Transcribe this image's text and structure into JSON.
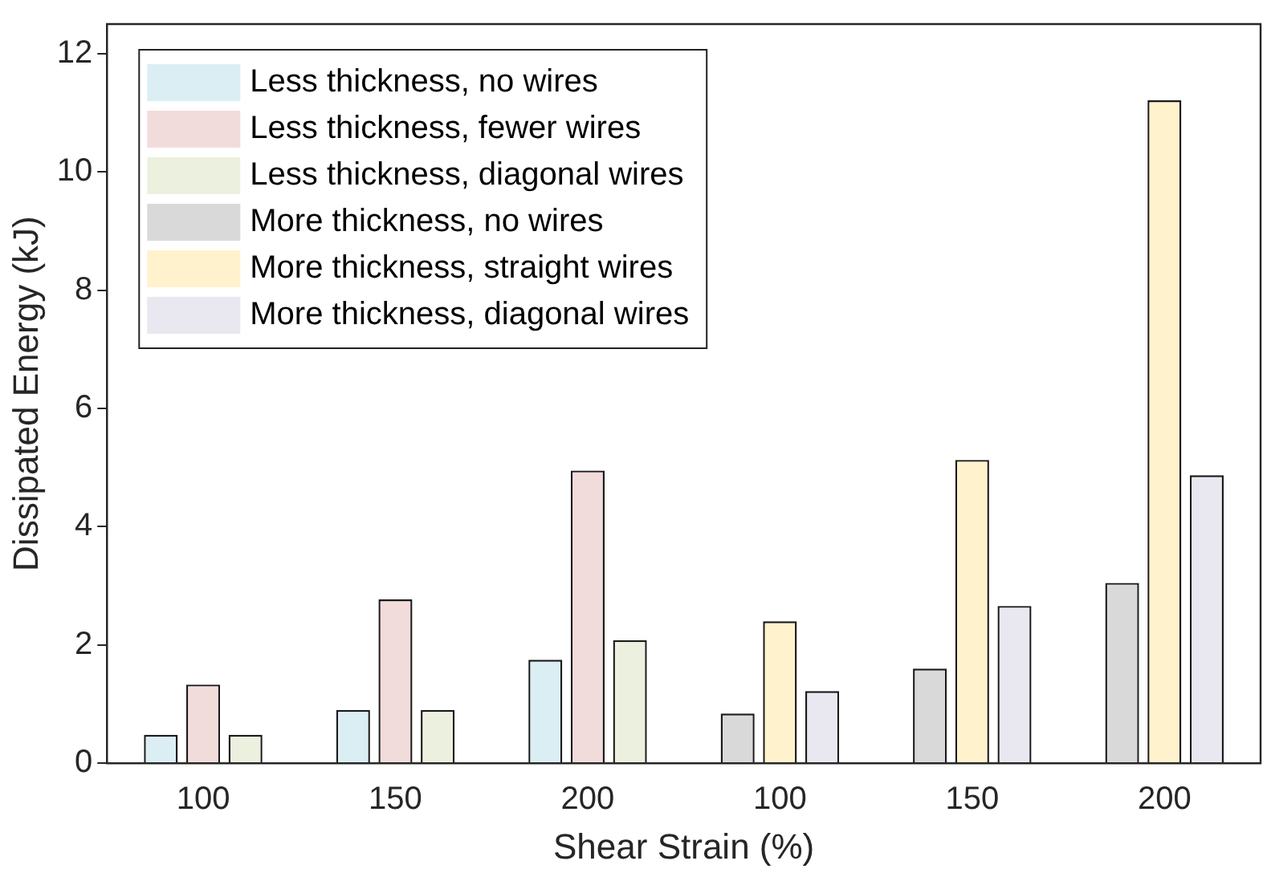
{
  "chart_data": {
    "type": "bar",
    "xlabel": "Shear Strain (%)",
    "ylabel": "Dissipated Energy (kJ)",
    "categories": [
      "100",
      "150",
      "200",
      "100",
      "150",
      "200"
    ],
    "series": [
      {
        "name": "Less thickness, no wires",
        "color": "#daeef3",
        "values": [
          0.48,
          0.9,
          1.75,
          null,
          null,
          null
        ]
      },
      {
        "name": "Less thickness, fewer wires",
        "color": "#f2dcdb",
        "values": [
          1.33,
          2.77,
          4.95,
          null,
          null,
          null
        ]
      },
      {
        "name": "Less thickness, diagonal wires",
        "color": "#ebf1de",
        "values": [
          0.48,
          0.9,
          2.08,
          null,
          null,
          null
        ]
      },
      {
        "name": "More thickness, no wires",
        "color": "#d9d9d9",
        "values": [
          null,
          null,
          null,
          0.84,
          1.6,
          3.05
        ]
      },
      {
        "name": "More thickness, straight wires",
        "color": "#fff2cc",
        "values": [
          null,
          null,
          null,
          2.4,
          5.13,
          11.21
        ]
      },
      {
        "name": "More thickness, diagonal wires",
        "color": "#e9e7f0",
        "values": [
          null,
          null,
          null,
          1.22,
          2.66,
          4.87
        ]
      }
    ],
    "ylim": [
      0,
      12.5
    ],
    "yticks": [
      0,
      2,
      4,
      6,
      8,
      10,
      12
    ],
    "grid": false,
    "legend": "top left"
  }
}
